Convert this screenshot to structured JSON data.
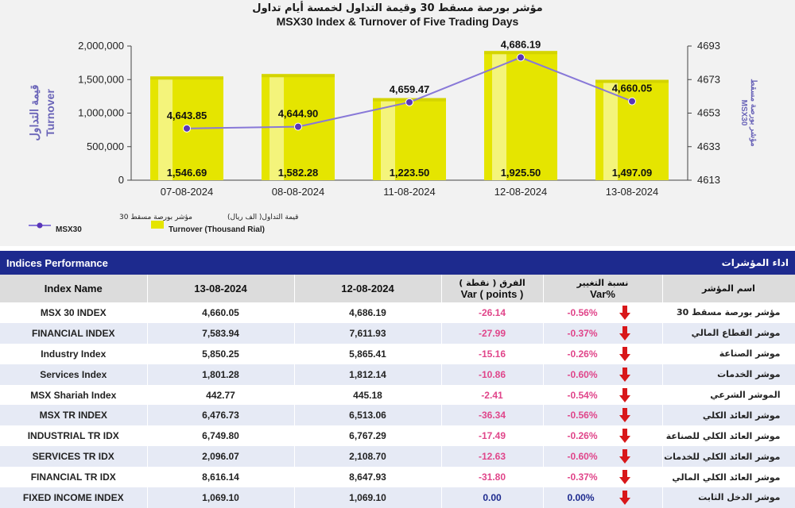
{
  "chart": {
    "title_ar": "مؤشر بورصة مسقط 30 وقيمة التداول لخمسة أيام تداول",
    "title_en": "MSX30 Index & Turnover of Five Trading Days",
    "left_axis_ar": "قيمة التداول",
    "left_axis_en": "Turnover",
    "right_axis_ar": "مؤشر بورصة مسقط",
    "right_axis_en": "MSX30",
    "legend": {
      "line_ar": "مؤشر بورصة مسقط 30",
      "line_en": "MSX30",
      "bar_ar": "قيمة التداول( الف ريال)",
      "bar_en": "Turnover (Thousand Rial)"
    },
    "colors": {
      "bar": "#e5e500",
      "line": "#8878d8",
      "marker": "#5a35b8",
      "navy": "#1d2a8e"
    }
  },
  "chart_data": {
    "type": "bar",
    "categories": [
      "07-08-2024",
      "08-08-2024",
      "11-08-2024",
      "12-08-2024",
      "13-08-2024"
    ],
    "series": [
      {
        "name": "Turnover (Thousand Rial)",
        "type": "bar",
        "axis": "left",
        "values": [
          1546.69,
          1582.28,
          1223.5,
          1925.5,
          1497.09
        ],
        "labels": [
          "1,546.69",
          "1,582.28",
          "1,223.50",
          "1,925.50",
          "1,497.09"
        ]
      },
      {
        "name": "MSX30",
        "type": "line",
        "axis": "right",
        "values": [
          4643.85,
          4644.9,
          4659.47,
          4686.19,
          4660.05
        ],
        "labels": [
          "4,643.85",
          "4,644.90",
          "4,659.47",
          "4,686.19",
          "4,660.05"
        ]
      }
    ],
    "left_ticks": [
      "0",
      "500,000",
      "1,000,000",
      "1,500,000",
      "2,000,000"
    ],
    "right_ticks": [
      "4613",
      "4633",
      "4653",
      "4673",
      "4693"
    ],
    "right_ylim": [
      4613,
      4693
    ]
  },
  "table": {
    "title_en": "Indices Performance",
    "title_ar": "اداء المؤشرات",
    "headers": {
      "name": "Index Name",
      "d1": "13-08-2024",
      "d2": "12-08-2024",
      "var_ar": "الفرق ( نقطة )",
      "var_en": "Var ( points )",
      "pct_ar": "نسبة التغيير",
      "pct_en": "Var%",
      "name_ar": "اسم المؤشر"
    },
    "rows": [
      {
        "name": "MSX 30 INDEX",
        "d1": "4,660.05",
        "d2": "4,686.19",
        "var": "-26.14",
        "pct": "-0.56%",
        "ar": "مؤشر بورصة مسقط 30",
        "dir": "down"
      },
      {
        "name": "FINANCIAL INDEX",
        "d1": "7,583.94",
        "d2": "7,611.93",
        "var": "-27.99",
        "pct": "-0.37%",
        "ar": "موشر القطاع المالي",
        "dir": "down"
      },
      {
        "name": "Industry Index",
        "d1": "5,850.25",
        "d2": "5,865.41",
        "var": "-15.16",
        "pct": "-0.26%",
        "ar": "موشر الصناعة",
        "dir": "down"
      },
      {
        "name": "Services Index",
        "d1": "1,801.28",
        "d2": "1,812.14",
        "var": "-10.86",
        "pct": "-0.60%",
        "ar": "موشر الخدمات",
        "dir": "down"
      },
      {
        "name": "MSX Shariah Index",
        "d1": "442.77",
        "d2": "445.18",
        "var": "-2.41",
        "pct": "-0.54%",
        "ar": "الموشر الشرعي",
        "dir": "down"
      },
      {
        "name": "MSX TR INDEX",
        "d1": "6,476.73",
        "d2": "6,513.06",
        "var": "-36.34",
        "pct": "-0.56%",
        "ar": "موشر العائد الكلي",
        "dir": "down"
      },
      {
        "name": "INDUSTRIAL TR IDX",
        "d1": "6,749.80",
        "d2": "6,767.29",
        "var": "-17.49",
        "pct": "-0.26%",
        "ar": "موشر العائد الكلي للصناعة",
        "dir": "down"
      },
      {
        "name": "SERVICES TR IDX",
        "d1": "2,096.07",
        "d2": "2,108.70",
        "var": "-12.63",
        "pct": "-0.60%",
        "ar": "موشر العائد الكلي للخدمات",
        "dir": "down"
      },
      {
        "name": "FINANCIAL TR IDX",
        "d1": "8,616.14",
        "d2": "8,647.93",
        "var": "-31.80",
        "pct": "-0.37%",
        "ar": "موشر العائد الكلي المالي",
        "dir": "down"
      },
      {
        "name": "FIXED INCOME INDEX",
        "d1": "1,069.10",
        "d2": "1,069.10",
        "var": "0.00",
        "pct": "0.00%",
        "ar": "موشر الدخل الثابت",
        "dir": "down"
      }
    ]
  }
}
